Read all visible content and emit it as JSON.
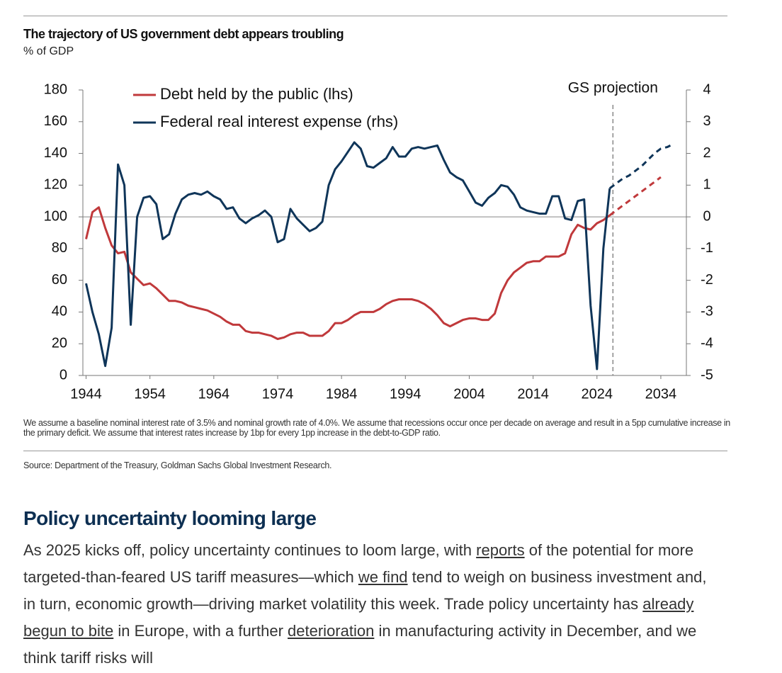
{
  "title": "The trajectory of US government debt appears troubling",
  "subtitle": "% of GDP",
  "chart_data": {
    "type": "line",
    "x": [
      1944,
      1945,
      1946,
      1947,
      1948,
      1949,
      1950,
      1951,
      1952,
      1953,
      1954,
      1955,
      1956,
      1957,
      1958,
      1959,
      1960,
      1961,
      1962,
      1963,
      1964,
      1965,
      1966,
      1967,
      1968,
      1969,
      1970,
      1971,
      1972,
      1973,
      1974,
      1975,
      1976,
      1977,
      1978,
      1979,
      1980,
      1981,
      1982,
      1983,
      1984,
      1985,
      1986,
      1987,
      1988,
      1989,
      1990,
      1991,
      1992,
      1993,
      1994,
      1995,
      1996,
      1997,
      1998,
      1999,
      2000,
      2001,
      2002,
      2003,
      2004,
      2005,
      2006,
      2007,
      2008,
      2009,
      2010,
      2011,
      2012,
      2013,
      2014,
      2015,
      2016,
      2017,
      2018,
      2019,
      2020,
      2021,
      2022,
      2023,
      2024,
      2025,
      2026,
      2027,
      2028,
      2029,
      2030,
      2031,
      2032,
      2033,
      2034,
      2035,
      2036
    ],
    "series": [
      {
        "name": "Debt held by the public (lhs)",
        "color": "#c0393b",
        "values": [
          86,
          103,
          106,
          93,
          82,
          77,
          78,
          65,
          61,
          57,
          58,
          55,
          51,
          47,
          47,
          46,
          44,
          43,
          42,
          41,
          39,
          37,
          34,
          32,
          32,
          28,
          27,
          27,
          26,
          25,
          23,
          24,
          26,
          27,
          27,
          25,
          25,
          25,
          28,
          33,
          33,
          35,
          38,
          40,
          40,
          40,
          42,
          45,
          47,
          48,
          48,
          48,
          47,
          45,
          42,
          38,
          33,
          31,
          33,
          35,
          36,
          36,
          35,
          35,
          39,
          52,
          60,
          65,
          68,
          71,
          72,
          72,
          75,
          75,
          75,
          77,
          89,
          95,
          93,
          92,
          96,
          98,
          101,
          104,
          107,
          110,
          113,
          116,
          119,
          122,
          125,
          null,
          null
        ]
      },
      {
        "name": "Federal real interest expense (rhs)",
        "color": "#0f3559",
        "axis": "y2",
        "values": [
          -2.1,
          -3.0,
          -3.7,
          -4.7,
          -3.5,
          1.65,
          1.0,
          -3.4,
          0.0,
          0.6,
          0.65,
          0.4,
          -0.7,
          -0.55,
          0.1,
          0.55,
          0.7,
          0.75,
          0.7,
          0.8,
          0.65,
          0.55,
          0.25,
          0.3,
          -0.05,
          -0.2,
          -0.05,
          0.05,
          0.2,
          0.0,
          -0.8,
          -0.7,
          0.25,
          -0.05,
          -0.25,
          -0.45,
          -0.35,
          -0.15,
          1.0,
          1.5,
          1.75,
          2.05,
          2.35,
          2.15,
          1.6,
          1.55,
          1.7,
          1.85,
          2.2,
          1.9,
          1.9,
          2.15,
          2.2,
          2.15,
          2.2,
          2.25,
          1.8,
          1.4,
          1.25,
          1.15,
          0.8,
          0.45,
          0.35,
          0.6,
          0.75,
          1.0,
          0.95,
          0.7,
          0.3,
          0.2,
          0.15,
          0.1,
          0.1,
          0.65,
          0.65,
          -0.05,
          -0.1,
          0.5,
          0.55,
          -2.8,
          -4.8,
          -1.0,
          0.9,
          1.05,
          1.2,
          1.3,
          1.45,
          1.6,
          1.8,
          2.0,
          2.15,
          2.2,
          2.3
        ]
      }
    ],
    "projection_start": 2026,
    "annotation": {
      "text": "GS projection",
      "x": 2026.5
    },
    "xlim": [
      1943.5,
      2038
    ],
    "xticks": [
      1944,
      1954,
      1964,
      1974,
      1984,
      1994,
      2004,
      2014,
      2024,
      2034
    ],
    "ylim": [
      0,
      180
    ],
    "yticks": [
      0,
      20,
      40,
      60,
      80,
      100,
      120,
      140,
      160,
      180
    ],
    "y2lim": [
      -5,
      4
    ],
    "y2ticks": [
      -5,
      -4,
      -3,
      -2,
      -1,
      0,
      1,
      2,
      3,
      4
    ],
    "legend": "upper left"
  },
  "notes": "We assume a baseline nominal interest rate of 3.5% and nominal growth rate of 4.0%. We assume that recessions occur once per decade on average and result in a 5pp cumulative increase in the primary deficit. We assume that interest rates increase by 1bp for every 1pp increase in the debt-to-GDP ratio.",
  "source": "Source: Department of the Treasury, Goldman Sachs Global Investment Research.",
  "heading": "Policy uncertainty looming large",
  "paragraph": [
    {
      "text": "As 2025 kicks off, policy uncertainty continues to loom large, with "
    },
    {
      "text": "reports",
      "link": true
    },
    {
      "text": " of the potential for more targeted-than-feared US tariff measures—which "
    },
    {
      "text": "we find",
      "link": true
    },
    {
      "text": " tend to weigh on business investment and, in turn, economic growth—driving market volatility this week. Trade policy uncertainty has "
    },
    {
      "text": "already begun to bite",
      "link": true
    },
    {
      "text": " in Europe, with a further "
    },
    {
      "text": "deterioration",
      "link": true
    },
    {
      "text": " in manufacturing activity in December, and we think tariff risks will"
    }
  ]
}
